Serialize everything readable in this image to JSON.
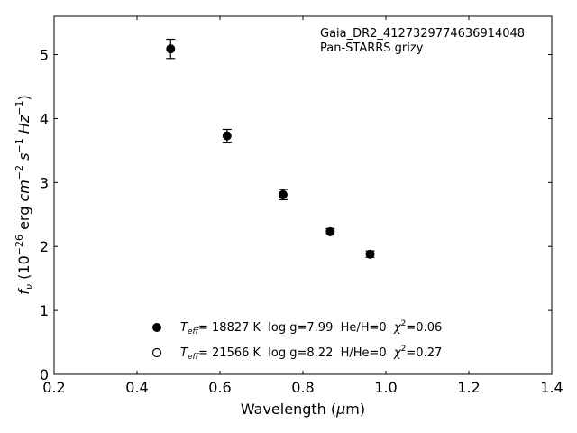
{
  "chart_data": {
    "type": "scatter",
    "title": "",
    "xlabel": {
      "pre": "Wavelength (",
      "sym": "μ",
      "post": "m)"
    },
    "ylabel": {
      "f": "f",
      "f_sub": "ν",
      "open": " (10",
      "exp1": "−26",
      "unit1": " erg ",
      "cm": "cm",
      "exp2": "−2",
      "sp1": " ",
      "s": "s",
      "exp3": "−1",
      "sp2": " ",
      "hz": "Hz",
      "exp4": "−1",
      "close": ")"
    },
    "xlim": [
      0.2,
      1.4
    ],
    "ylim": [
      0,
      5.6
    ],
    "xticks": [
      0.2,
      0.4,
      0.6,
      0.8,
      1.0,
      1.2,
      1.4
    ],
    "xtick_labels": [
      "0.2",
      "0.4",
      "0.6",
      "0.8",
      "1.0",
      "1.2",
      "1.4"
    ],
    "yticks": [
      0,
      1,
      2,
      3,
      4,
      5
    ],
    "ytick_labels": [
      "0",
      "1",
      "2",
      "3",
      "4",
      "5"
    ],
    "grid": false,
    "legend_position": "bottom-left",
    "annotation": [
      "Gaia_DR2_4127329774636914048",
      "Pan-STARRS grizy"
    ],
    "series": [
      {
        "marker": "filled-circle",
        "x": [
          0.481,
          0.617,
          0.752,
          0.866,
          0.962
        ],
        "y": [
          5.09,
          3.73,
          2.81,
          2.23,
          1.88
        ],
        "yerr": [
          0.15,
          0.1,
          0.08,
          0.05,
          0.05
        ]
      }
    ],
    "legend": [
      {
        "marker": "filled-circle",
        "teff_label": "T",
        "teff_sub": "eff",
        "teff_text": "= 18827 K  log g=7.99  He/H=0  ",
        "chi": "χ",
        "chi_exp": "2",
        "chi_text": "=0.06"
      },
      {
        "marker": "open-circle",
        "teff_label": "T",
        "teff_sub": "eff",
        "teff_text": "= 21566 K  log g=8.22  H/He=0  ",
        "chi": "χ",
        "chi_exp": "2",
        "chi_text": "=0.27"
      }
    ]
  }
}
